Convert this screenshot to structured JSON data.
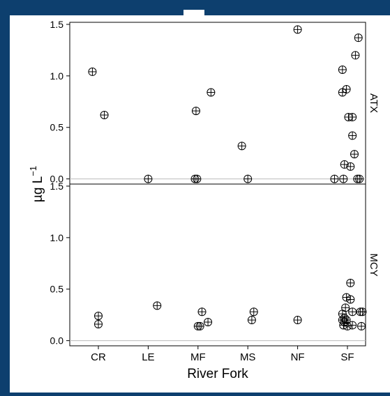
{
  "chart_data": {
    "type": "scatter",
    "title": "",
    "xlabel": "River Fork",
    "ylabel": "µg L",
    "ylabel_superscript": "−1",
    "categories": [
      "CR",
      "LE",
      "MF",
      "MS",
      "NF",
      "SF"
    ],
    "ylim": [
      -0.05,
      1.52
    ],
    "yticks": [
      0.0,
      0.5,
      1.0,
      1.5
    ],
    "ytick_labels": [
      "0.0",
      "0.5",
      "1.0",
      "1.5"
    ],
    "grid": false,
    "marker": "circle-plus",
    "reference_line": 0,
    "panels": [
      {
        "name": "ATX",
        "points": [
          {
            "x": "CR",
            "offset": -0.12,
            "y": 1.04
          },
          {
            "x": "CR",
            "offset": 0.12,
            "y": 0.62
          },
          {
            "x": "LE",
            "offset": 0.0,
            "y": 0.0
          },
          {
            "x": "MF",
            "offset": -0.04,
            "y": 0.66
          },
          {
            "x": "MF",
            "offset": -0.06,
            "y": 0.0
          },
          {
            "x": "MF",
            "offset": -0.02,
            "y": 0.0
          },
          {
            "x": "MF",
            "offset": 0.26,
            "y": 0.84
          },
          {
            "x": "MS",
            "offset": -0.12,
            "y": 0.32
          },
          {
            "x": "MS",
            "offset": 0.0,
            "y": 0.0
          },
          {
            "x": "NF",
            "offset": 0.0,
            "y": 1.45
          },
          {
            "x": "SF",
            "offset": -0.26,
            "y": 0.0
          },
          {
            "x": "SF",
            "offset": -0.08,
            "y": 0.0
          },
          {
            "x": "SF",
            "offset": -0.1,
            "y": 1.06
          },
          {
            "x": "SF",
            "offset": -0.1,
            "y": 0.84
          },
          {
            "x": "SF",
            "offset": -0.02,
            "y": 0.87
          },
          {
            "x": "SF",
            "offset": 0.22,
            "y": 1.37
          },
          {
            "x": "SF",
            "offset": 0.16,
            "y": 1.2
          },
          {
            "x": "SF",
            "offset": 0.02,
            "y": 0.6
          },
          {
            "x": "SF",
            "offset": 0.1,
            "y": 0.6
          },
          {
            "x": "SF",
            "offset": 0.1,
            "y": 0.42
          },
          {
            "x": "SF",
            "offset": 0.14,
            "y": 0.24
          },
          {
            "x": "SF",
            "offset": -0.06,
            "y": 0.14
          },
          {
            "x": "SF",
            "offset": 0.06,
            "y": 0.12
          },
          {
            "x": "SF",
            "offset": 0.2,
            "y": 0.0
          },
          {
            "x": "SF",
            "offset": 0.24,
            "y": 0.0
          }
        ]
      },
      {
        "name": "MCY",
        "points": [
          {
            "x": "CR",
            "offset": 0.0,
            "y": 0.24
          },
          {
            "x": "CR",
            "offset": 0.0,
            "y": 0.16
          },
          {
            "x": "LE",
            "offset": 0.18,
            "y": 0.34
          },
          {
            "x": "MF",
            "offset": 0.08,
            "y": 0.28
          },
          {
            "x": "MF",
            "offset": 0.0,
            "y": 0.14
          },
          {
            "x": "MF",
            "offset": 0.04,
            "y": 0.14
          },
          {
            "x": "MF",
            "offset": 0.2,
            "y": 0.18
          },
          {
            "x": "MS",
            "offset": 0.12,
            "y": 0.28
          },
          {
            "x": "MS",
            "offset": 0.08,
            "y": 0.2
          },
          {
            "x": "NF",
            "offset": 0.0,
            "y": 0.2
          },
          {
            "x": "SF",
            "offset": 0.06,
            "y": 0.56
          },
          {
            "x": "SF",
            "offset": -0.02,
            "y": 0.42
          },
          {
            "x": "SF",
            "offset": 0.06,
            "y": 0.4
          },
          {
            "x": "SF",
            "offset": -0.04,
            "y": 0.32
          },
          {
            "x": "SF",
            "offset": 0.1,
            "y": 0.28
          },
          {
            "x": "SF",
            "offset": 0.26,
            "y": 0.28
          },
          {
            "x": "SF",
            "offset": 0.3,
            "y": 0.28
          },
          {
            "x": "SF",
            "offset": -0.1,
            "y": 0.26
          },
          {
            "x": "SF",
            "offset": -0.06,
            "y": 0.22
          },
          {
            "x": "SF",
            "offset": -0.1,
            "y": 0.2
          },
          {
            "x": "SF",
            "offset": -0.06,
            "y": 0.18
          },
          {
            "x": "SF",
            "offset": -0.02,
            "y": 0.2
          },
          {
            "x": "SF",
            "offset": -0.08,
            "y": 0.15
          },
          {
            "x": "SF",
            "offset": 0.0,
            "y": 0.14
          },
          {
            "x": "SF",
            "offset": 0.1,
            "y": 0.15
          },
          {
            "x": "SF",
            "offset": 0.28,
            "y": 0.14
          }
        ]
      }
    ]
  },
  "colors": {
    "frame_background": "#0d3f6e",
    "plot_background": "#ffffff",
    "marker_stroke": "#000000",
    "reference_line": "#bbbbbb"
  }
}
